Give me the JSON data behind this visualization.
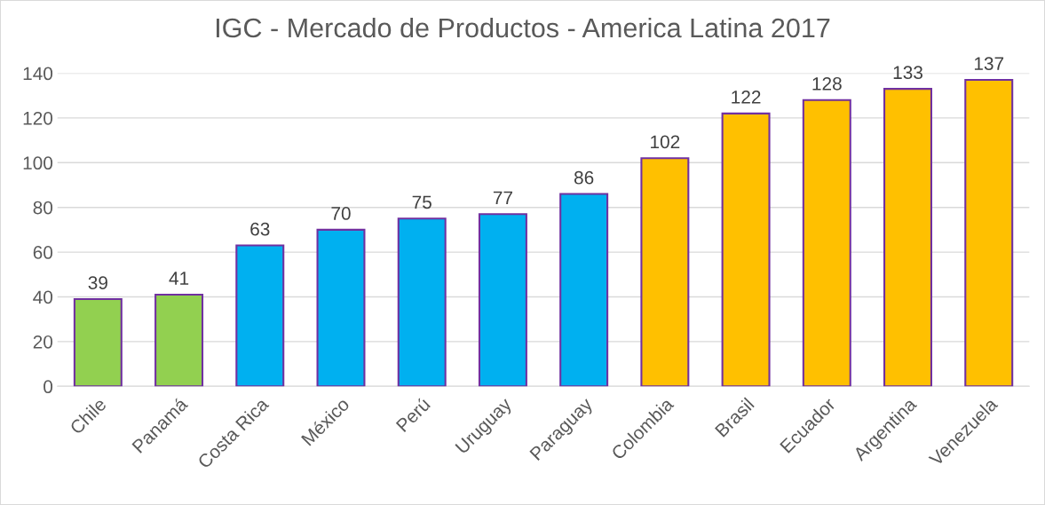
{
  "chart_data": {
    "type": "bar",
    "title": "IGC - Mercado de Productos - America Latina 2017",
    "categories": [
      "Chile",
      "Panamá",
      "Costa Rica",
      "México",
      "Perú",
      "Uruguay",
      "Paraguay",
      "Colombia",
      "Brasil",
      "Ecuador",
      "Argentina",
      "Venezuela"
    ],
    "values": [
      39,
      41,
      63,
      70,
      75,
      77,
      86,
      102,
      122,
      128,
      133,
      137
    ],
    "colors": [
      "#92d050",
      "#92d050",
      "#00b0f0",
      "#00b0f0",
      "#00b0f0",
      "#00b0f0",
      "#00b0f0",
      "#ffc000",
      "#ffc000",
      "#ffc000",
      "#ffc000",
      "#ffc000"
    ],
    "ylim": [
      0,
      140
    ],
    "yticks": [
      0,
      20,
      40,
      60,
      80,
      100,
      120,
      140
    ],
    "grid": "y",
    "data_labels": true,
    "legend": false
  }
}
